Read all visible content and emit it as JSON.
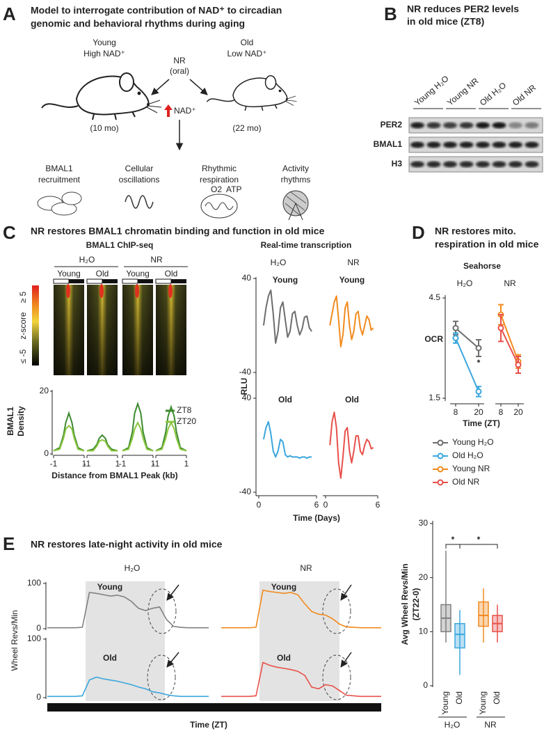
{
  "panel_a": {
    "letter": "A",
    "title": [
      "Model to interrogate contribution of NAD⁺ to circadian",
      "genomic and behavioral rhythms during aging"
    ],
    "young": [
      "Young",
      "High NAD⁺"
    ],
    "old": [
      "Old",
      "Low NAD⁺"
    ],
    "treatment": [
      "NR",
      "(oral)"
    ],
    "nad": "NAD⁺",
    "young_age": "(10 mo)",
    "old_age": "(22 mo)",
    "outcomes": [
      [
        "BMAL1",
        "recruitment"
      ],
      [
        "Cellular",
        "oscillations"
      ],
      [
        "Rhythmic",
        "respiration"
      ],
      [
        "Activity",
        "rhythms"
      ]
    ],
    "icon_labels": [
      "O2",
      "ATP"
    ]
  },
  "panel_b": {
    "letter": "B",
    "title": [
      "NR reduces PER2 levels",
      "in old mice (ZT8)"
    ],
    "lanes": [
      "Young H₂O",
      "Young NR",
      "Old H₂O",
      "Old NR"
    ],
    "blots": [
      "PER2",
      "BMAL1",
      "H3"
    ]
  },
  "panel_c": {
    "letter": "C",
    "title": "NR restores BMAL1 chromatin binding and function in old mice",
    "chip_title": "BMAL1 ChIP-seq",
    "treatments": [
      "H₂O",
      "NR"
    ],
    "ages": [
      "Young",
      "Old",
      "Young",
      "Old"
    ],
    "colorbar": {
      "label": "z-score",
      "max": "≥ 5",
      "min": "≤ -5"
    },
    "rt_title": "Real-time transcription"
  },
  "panel_d": {
    "letter": "D",
    "title": [
      "NR restores mito.",
      "respiration in old mice"
    ],
    "subtitle": "Seahorse"
  },
  "panel_e": {
    "letter": "E",
    "title": "NR restores late-night activity in old mice"
  },
  "chart_data": [
    {
      "type": "line",
      "ylabel": [
        "BMAL1",
        "Density"
      ],
      "xlabel": "Distance from BMAL1 Peak (kb)",
      "xlim": [
        -1,
        1
      ],
      "xticks": [
        -1,
        1
      ],
      "ylim": [
        0,
        20
      ],
      "yticks": [
        0,
        20
      ],
      "x": [
        -1,
        -0.6,
        -0.35,
        -0.2,
        0,
        0.2,
        0.35,
        0.6,
        1
      ],
      "series": [
        {
          "name": "ZT8",
          "color": "#3b8a2e",
          "values": [
            [
              1,
              2,
              6,
              10,
              13,
              10,
              6,
              2,
              1
            ],
            [
              1,
              1.5,
              3,
              5,
              6,
              5,
              3,
              1.5,
              1
            ],
            [
              1,
              2,
              7,
              13,
              16,
              13,
              7,
              2,
              1
            ],
            [
              1,
              2,
              7,
              12,
              15,
              12,
              7,
              2,
              1
            ]
          ]
        },
        {
          "name": "ZT20",
          "color": "#8cc63f",
          "values": [
            [
              1,
              1.5,
              5,
              8,
              9,
              8,
              5,
              1.5,
              1
            ],
            [
              1,
              1,
              2.5,
              4,
              4.5,
              4,
              2.5,
              1,
              1
            ],
            [
              1,
              1.5,
              5,
              8,
              10,
              8,
              5,
              1.5,
              1
            ],
            [
              1,
              1.5,
              5,
              8,
              10,
              8,
              5,
              1.5,
              1
            ]
          ]
        }
      ]
    },
    {
      "type": "line",
      "columns": [
        "H₂O",
        "NR"
      ],
      "ylabel": "RLU",
      "xlabel": "Time (Days)",
      "xlim": [
        0,
        6
      ],
      "xticks": [
        0,
        6
      ],
      "ylim": [
        -40,
        40
      ],
      "yticks": [
        -40,
        40
      ],
      "x": [
        0.5,
        0.75,
        1,
        1.25,
        1.5,
        1.75,
        2,
        2.25,
        2.5,
        2.75,
        3,
        3.25,
        3.5,
        3.75,
        4,
        4.25,
        4.5,
        4.75,
        5,
        5.25,
        5.5
      ],
      "series": [
        {
          "name": "Young",
          "color": "#6d6d6d",
          "values": [
            0,
            15,
            25,
            30,
            10,
            -15,
            -5,
            15,
            20,
            5,
            -10,
            -5,
            10,
            12,
            0,
            -8,
            -3,
            7,
            8,
            -2,
            -5
          ]
        },
        {
          "name": "Young",
          "color": "#f28a1e",
          "values": [
            0,
            10,
            20,
            25,
            5,
            -18,
            -8,
            15,
            20,
            0,
            -12,
            -5,
            10,
            12,
            -2,
            -8,
            0,
            8,
            5,
            -4,
            -2
          ]
        },
        {
          "name": "Old",
          "color": "#3aa6dd",
          "values": [
            5,
            15,
            20,
            10,
            -5,
            -10,
            -5,
            5,
            3,
            -8,
            -10,
            -9,
            -10,
            -10,
            -10,
            -11,
            -10,
            -10,
            -11,
            -10,
            -10
          ]
        },
        {
          "name": "Old",
          "color": "#e8504a",
          "values": [
            0,
            20,
            28,
            15,
            -15,
            -28,
            -10,
            12,
            15,
            -5,
            -15,
            -5,
            8,
            8,
            -5,
            -8,
            0,
            5,
            3,
            -3,
            -2
          ]
        }
      ]
    },
    {
      "type": "line",
      "columns": [
        "H₂O",
        "NR"
      ],
      "ylabel": "OCR",
      "xlabel": "Time (ZT)",
      "categories": [
        8,
        20
      ],
      "ylim": [
        1.5,
        4.5
      ],
      "yticks": [
        1.5,
        4.5
      ],
      "annotations": [
        "*"
      ],
      "series": [
        {
          "name": "Young H₂O",
          "color": "#6d6d6d",
          "values": [
            3.6,
            3.0
          ],
          "errors": [
            0.2,
            0.25
          ]
        },
        {
          "name": "Old H₂O",
          "color": "#3aa6dd",
          "values": [
            3.3,
            1.7
          ],
          "errors": [
            0.15,
            0.15
          ]
        },
        {
          "name": "Young NR",
          "color": "#f28a1e",
          "values": [
            4.0,
            2.6
          ],
          "errors": [
            0.3,
            0.2
          ]
        },
        {
          "name": "Old NR",
          "color": "#e8504a",
          "values": [
            3.6,
            2.5
          ],
          "errors": [
            0.4,
            0.25
          ]
        }
      ]
    },
    {
      "type": "line",
      "columns": [
        "H₂O",
        "NR"
      ],
      "ylabel": "Wheel Revs/Min",
      "xlabel": "Time (ZT)",
      "ylim": [
        0,
        100
      ],
      "yticks": [
        0,
        100
      ],
      "series": [
        {
          "name": "Young",
          "color": "#808080",
          "values": [
            2,
            2,
            2,
            2,
            2,
            3,
            80,
            78,
            75,
            72,
            74,
            70,
            60,
            45,
            40,
            45,
            48,
            20,
            5,
            3,
            2,
            2,
            2,
            2
          ]
        },
        {
          "name": "Old",
          "color": "#3aa6dd",
          "values": [
            2,
            2,
            2,
            2,
            2,
            3,
            30,
            35,
            32,
            30,
            28,
            25,
            22,
            18,
            15,
            10,
            8,
            5,
            3,
            2,
            2,
            2,
            2,
            2
          ]
        },
        {
          "name": "Young",
          "color": "#f28a1e",
          "values": [
            2,
            2,
            2,
            2,
            2,
            3,
            85,
            82,
            80,
            78,
            80,
            75,
            55,
            38,
            32,
            30,
            22,
            10,
            4,
            3,
            2,
            2,
            2,
            2
          ]
        },
        {
          "name": "Old",
          "color": "#e8504a",
          "values": [
            2,
            2,
            2,
            2,
            2,
            3,
            60,
            55,
            52,
            50,
            48,
            45,
            38,
            18,
            15,
            22,
            20,
            12,
            4,
            3,
            2,
            2,
            2,
            2
          ]
        }
      ]
    },
    {
      "type": "box",
      "ylabel": [
        "Avg Wheel Revs/Min",
        "(ZT22-0)"
      ],
      "ylim": [
        0,
        30
      ],
      "yticks": [
        0,
        10,
        20,
        30
      ],
      "categories": [
        "Young",
        "Old",
        "Young",
        "Old"
      ],
      "groups": [
        "H₂O",
        "NR"
      ],
      "annotations": [
        "*",
        "*"
      ],
      "colors": [
        "#808080",
        "#3aa6dd",
        "#f28a1e",
        "#e8504a"
      ],
      "boxes": [
        {
          "min": 8,
          "q1": 10,
          "median": 12.5,
          "q3": 15,
          "max": 25
        },
        {
          "min": 2,
          "q1": 7,
          "median": 9.5,
          "q3": 11.5,
          "max": 14
        },
        {
          "min": 8,
          "q1": 11,
          "median": 13,
          "q3": 15.5,
          "max": 18
        },
        {
          "min": 8,
          "q1": 10,
          "median": 11.5,
          "q3": 13,
          "max": 15
        }
      ]
    }
  ]
}
